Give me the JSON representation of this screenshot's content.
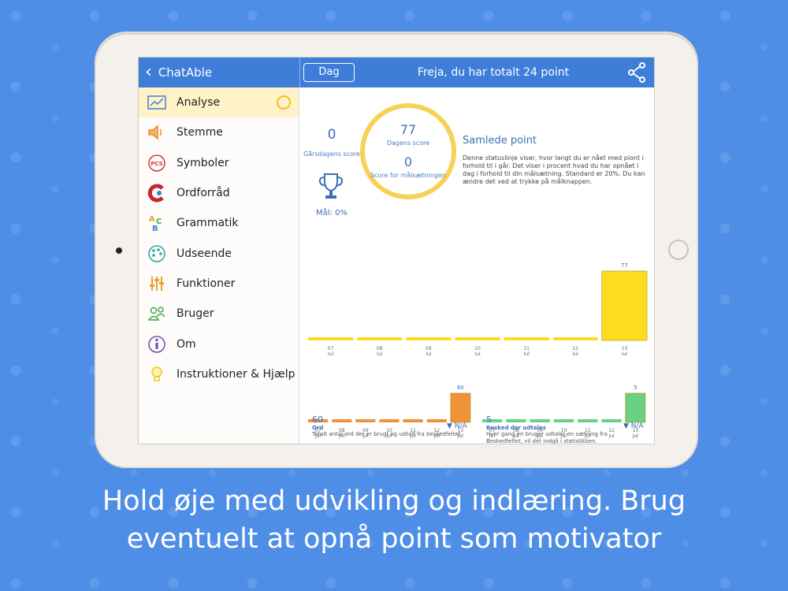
{
  "app": {
    "back_label": "ChatAble",
    "tab_button": "Dag",
    "title": "Freja, du har totalt 24 point"
  },
  "sidebar": {
    "items": [
      {
        "label": "Analyse",
        "icon": "chart-icon",
        "color": "#3e7ed9"
      },
      {
        "label": "Stemme",
        "icon": "speaker-icon",
        "color": "#e78a2f"
      },
      {
        "label": "Symboler",
        "icon": "pcs-icon",
        "color": "#d03a3a"
      },
      {
        "label": "Ordforråd",
        "icon": "c-icon",
        "color": "#c4282e"
      },
      {
        "label": "Grammatik",
        "icon": "abc-icon",
        "color": "#39a84b"
      },
      {
        "label": "Udseende",
        "icon": "palette-icon",
        "color": "#28a7a0"
      },
      {
        "label": "Funktioner",
        "icon": "sliders-icon",
        "color": "#e7a12f"
      },
      {
        "label": "Bruger",
        "icon": "users-icon",
        "color": "#3fa84a"
      },
      {
        "label": "Om",
        "icon": "info-icon",
        "color": "#6b4bb5"
      },
      {
        "label": "Instruktioner & Hjælp",
        "icon": "lightbulb-icon",
        "color": "#f3c21c"
      }
    ]
  },
  "stats": {
    "yesterday_value": "0",
    "yesterday_label": "Gårsdagens score",
    "today_value": "77",
    "today_label": "Dagens score",
    "goal_value": "0",
    "goal_label": "Score for målsætningen",
    "goal_pct": "Mål: 0%",
    "samlede_title": "Samlede point",
    "samlede_desc": "Denne statuslinje viser, hvor langt du er nået med piont i forhold til i går. Det viser i procent hvad du har opnået i dag i forhold til din målsætning. Standard er 20%. Du kan ændre det ved at trykke på målknappen."
  },
  "summary": {
    "ord_value": "60",
    "ord_label": "Ord",
    "ord_desc": "Totalt antal ord der er brugt og udtalt fra beskedfeltet.",
    "besked_value": "5",
    "besked_label": "Besked der udtales",
    "besked_desc": "Hver gang en bruger udtaler en sætning fra Beskedfeltet, vil det indgå i statistikken.",
    "na1": "N/A",
    "na2": "N/A"
  },
  "chart_data": [
    {
      "type": "bar",
      "categories": [
        "07 Jul",
        "08 Jul",
        "09 Jul",
        "10 Jul",
        "11 Jul",
        "12 Jul",
        "13 Jul"
      ],
      "values": [
        0,
        0,
        0,
        0,
        0,
        0,
        77
      ],
      "data_labels": [
        "",
        "",
        "",
        "",
        "",
        "",
        "77"
      ],
      "color": "#fbdc1e"
    },
    {
      "type": "bar",
      "categories": [
        "07 Jul",
        "08 Jul",
        "09 Jul",
        "10 Jul",
        "11 Jul",
        "12 Jul",
        "13 Jul"
      ],
      "values": [
        0,
        0,
        0,
        0,
        0,
        0,
        60
      ],
      "data_labels": [
        "",
        "",
        "",
        "",
        "",
        "",
        "60"
      ],
      "color": "#f0923a"
    },
    {
      "type": "bar",
      "categories": [
        "07 Jul",
        "08 Jul",
        "09 Jul",
        "10 Jul",
        "11 Jul",
        "12 Jul",
        "13 Jul"
      ],
      "values": [
        0,
        0,
        0,
        0,
        0,
        0,
        5
      ],
      "data_labels": [
        "",
        "",
        "",
        "",
        "",
        "",
        "5"
      ],
      "color": "#6ad184"
    }
  ],
  "caption": {
    "line1": "Hold øje med udvikling og indlæring. Brug",
    "line2": "eventuelt at opnå point som motivator"
  }
}
